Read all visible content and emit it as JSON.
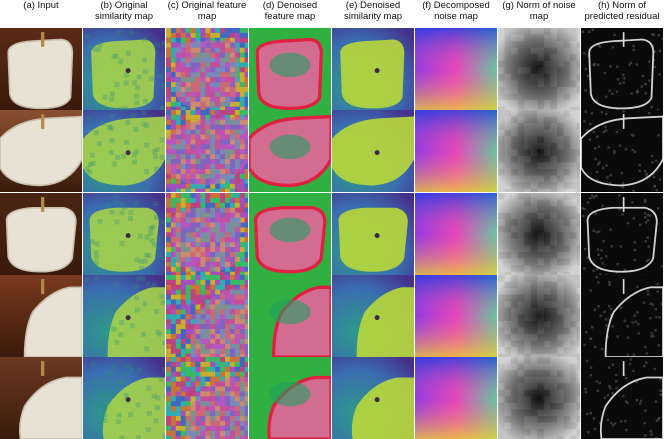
{
  "columns": [
    {
      "id": "input",
      "label": "(a) Input"
    },
    {
      "id": "orig_sim",
      "label": "(b) Original similarity map"
    },
    {
      "id": "orig_feat",
      "label": "(c) Original feature map"
    },
    {
      "id": "den_feat",
      "label": "(d) Denoised feature map"
    },
    {
      "id": "den_sim",
      "label": "(e) Denoised similarity map"
    },
    {
      "id": "noise",
      "label": "(f) Decomposed noise map"
    },
    {
      "id": "noise_norm",
      "label": "(g) Norm of noise map"
    },
    {
      "id": "residual",
      "label": "(h) Norm of predicted residual"
    }
  ],
  "rows": 5
}
